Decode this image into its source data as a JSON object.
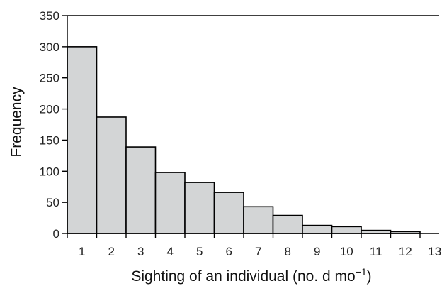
{
  "chart_data": {
    "type": "bar",
    "title": "",
    "xlabel": "Sighting of an individual (no. d mo",
    "xlabel_sup": "−1",
    "xlabel_end": ")",
    "ylabel": "Frequency",
    "categories": [
      "1",
      "2",
      "3",
      "4",
      "5",
      "6",
      "7",
      "8",
      "9",
      "10",
      "11",
      "12",
      "13"
    ],
    "values": [
      300,
      187,
      139,
      98,
      82,
      66,
      43,
      29,
      13,
      11,
      5,
      3,
      0
    ],
    "ylim": [
      0,
      350
    ],
    "yticks": [
      0,
      50,
      100,
      150,
      200,
      250,
      300,
      350
    ],
    "grid": false,
    "bar_color": "#d3d5d6"
  }
}
